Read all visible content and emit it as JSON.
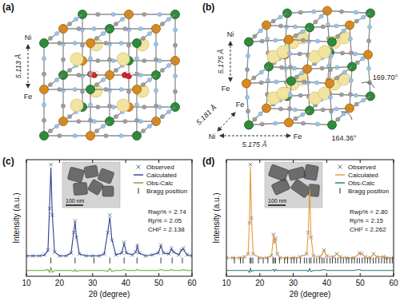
{
  "chart_data": [
    {
      "type": "rietveld",
      "title": "(c)",
      "x_label": "2θ (degree)",
      "y_label": "Intensity (a.u.)",
      "xlim": [
        10,
        60
      ],
      "xticks": [
        10,
        20,
        30,
        40,
        50,
        60
      ],
      "ylim": [
        -15,
        105
      ],
      "tick_labels": "x",
      "grid": false,
      "legend": "upper right",
      "x": [
        10,
        12,
        14,
        15.5,
        16.5,
        17,
        17.4,
        17.8,
        18.5,
        20,
        22,
        23.5,
        24.3,
        24.7,
        25.1,
        26,
        28,
        30,
        32,
        33.5,
        34.6,
        35.2,
        35.8,
        37,
        38.8,
        39.5,
        40.2,
        42,
        43,
        43.5,
        44,
        46,
        48,
        49.8,
        50.6,
        51.4,
        53,
        53.8,
        54.4,
        56,
        56.8,
        57.4,
        58.5,
        60
      ],
      "series": [
        {
          "name": "Observed",
          "type": "scatter",
          "marker": "x",
          "color": "#5d6f99",
          "values": [
            6,
            6,
            6,
            7,
            12,
            55,
            100,
            48,
            10,
            6,
            6,
            9,
            30,
            42,
            25,
            8,
            6,
            6,
            6,
            8,
            30,
            48,
            22,
            7,
            9,
            20,
            9,
            7,
            10,
            17,
            9,
            6,
            7,
            9,
            17,
            9,
            8,
            14,
            10,
            7,
            12,
            14,
            7,
            6
          ]
        },
        {
          "name": "Calculated",
          "type": "line",
          "line_style": "solid",
          "color": "#2b3f8f",
          "values": [
            6,
            6,
            6,
            7,
            11,
            57,
            97,
            50,
            10,
            6,
            6,
            9,
            31,
            41,
            26,
            8,
            6,
            6,
            6,
            8,
            31,
            46,
            23,
            7,
            9,
            19,
            9,
            7,
            10,
            16,
            9,
            6,
            7,
            9,
            16,
            9,
            8,
            13,
            10,
            7,
            12,
            13,
            7,
            6
          ]
        },
        {
          "name": "Obs-Calc",
          "type": "line",
          "line_style": "solid",
          "color": "#6aa33a",
          "values": [
            -9,
            -9,
            -9,
            -9,
            -8,
            -11,
            -6,
            -11,
            -9,
            -9,
            -9,
            -9,
            -10,
            -8,
            -10,
            -9,
            -9,
            -9,
            -9,
            -9,
            -10,
            -7,
            -10,
            -9,
            -9,
            -8,
            -9,
            -9,
            -9,
            -8,
            -9,
            -9,
            -9,
            -9,
            -8,
            -9,
            -9,
            -8,
            -9,
            -9,
            -9,
            -8,
            -9,
            -9
          ]
        },
        {
          "name": "Bragg position",
          "type": "bragg",
          "marker": "|",
          "color": "#222222",
          "x": [
            17.4,
            24.7,
            30.4,
            35.2,
            39.5,
            43.4,
            50.6,
            54,
            57.1
          ]
        }
      ],
      "annotations": [
        "Rwp% = 2.74",
        "Rp% = 2.05",
        "CHI² = 2.138"
      ],
      "inset_label": "100 nm"
    },
    {
      "type": "rietveld",
      "title": "(d)",
      "x_label": "2θ (degree)",
      "y_label": "Intensity (a.u.)",
      "xlim": [
        10,
        60
      ],
      "xticks": [
        10,
        20,
        30,
        40,
        50,
        60
      ],
      "ylim": [
        -15,
        105
      ],
      "tick_labels": "x",
      "grid": false,
      "legend": "upper right",
      "x": [
        10,
        12,
        14,
        15.5,
        16.5,
        16.9,
        17.2,
        17.5,
        18,
        20,
        22,
        23.5,
        24.1,
        24.4,
        24.7,
        25.2,
        26,
        28,
        30,
        32,
        34,
        34.5,
        34.9,
        35.3,
        36,
        38,
        39.2,
        40,
        42,
        43,
        44,
        46,
        48,
        49.8,
        50.5,
        51.5,
        53,
        54,
        55,
        57,
        58,
        60
      ],
      "series": [
        {
          "name": "Observed",
          "type": "scatter",
          "marker": "x",
          "color": "#6f6f8f",
          "values": [
            4,
            4,
            4,
            5,
            8,
            40,
            100,
            45,
            8,
            4,
            4,
            6,
            28,
            20,
            24,
            8,
            4,
            4,
            4,
            5,
            8,
            30,
            78,
            25,
            6,
            5,
            12,
            6,
            5,
            8,
            5,
            4,
            4,
            9,
            8,
            5,
            4,
            8,
            5,
            5,
            4,
            4
          ]
        },
        {
          "name": "Calculated",
          "type": "line",
          "line_style": "solid",
          "color": "#e39b3a",
          "values": [
            4,
            4,
            4,
            5,
            8,
            42,
            98,
            46,
            8,
            4,
            4,
            6,
            27,
            21,
            23,
            8,
            4,
            4,
            4,
            5,
            8,
            31,
            76,
            26,
            6,
            5,
            11,
            6,
            5,
            8,
            5,
            4,
            4,
            8,
            8,
            5,
            4,
            8,
            5,
            5,
            4,
            4
          ]
        },
        {
          "name": "Obs-Calc",
          "type": "line",
          "line_style": "solid",
          "color": "#2f6f73",
          "values": [
            -9,
            -9,
            -9,
            -9,
            -9,
            -11,
            -7,
            -10,
            -9,
            -9,
            -9,
            -9,
            -8,
            -10,
            -8,
            -9,
            -9,
            -9,
            -9,
            -9,
            -9,
            -10,
            -7,
            -10,
            -9,
            -9,
            -8,
            -9,
            -9,
            -9,
            -9,
            -9,
            -9,
            -8,
            -9,
            -9,
            -9,
            -9,
            -9,
            -9,
            -9,
            -9
          ]
        },
        {
          "name": "Bragg position",
          "type": "bragg",
          "marker": "|",
          "color": "#222222",
          "x": [
            12.4,
            14.2,
            15.0,
            17.1,
            17.4,
            17.9,
            19.6,
            21.0,
            22.4,
            23.9,
            24.3,
            24.7,
            25.9,
            27.4,
            28.3,
            29.4,
            30.2,
            31.0,
            32.1,
            33.3,
            34.0,
            34.8,
            35.3,
            36.2,
            37.0,
            37.9,
            38.6,
            39.2,
            40.1,
            41.0,
            41.7,
            42.6,
            43.3,
            44.2,
            45.0,
            45.9,
            46.6,
            47.5,
            48.3,
            49.1,
            49.8,
            50.6,
            51.4,
            52.2,
            53.0,
            53.9,
            54.7,
            55.6,
            56.4,
            57.2,
            58.0,
            58.9,
            59.6
          ]
        }
      ],
      "annotations": [
        "Rwp% = 2.80",
        "Rp% = 2.15",
        "CHI² = 2.262"
      ],
      "inset_label": "100 nm"
    }
  ],
  "diagrams": [
    {
      "title": "(a)",
      "labels": [
        "Ni",
        "Fe",
        "5.113 Å"
      ]
    },
    {
      "title": "(b)",
      "labels": [
        "Ni",
        "5.175 Å",
        "Fe",
        "Fe",
        "5.181 Å",
        "Ni",
        "5.175 Å",
        "Fe",
        "169.70°",
        "164.36°"
      ]
    }
  ]
}
